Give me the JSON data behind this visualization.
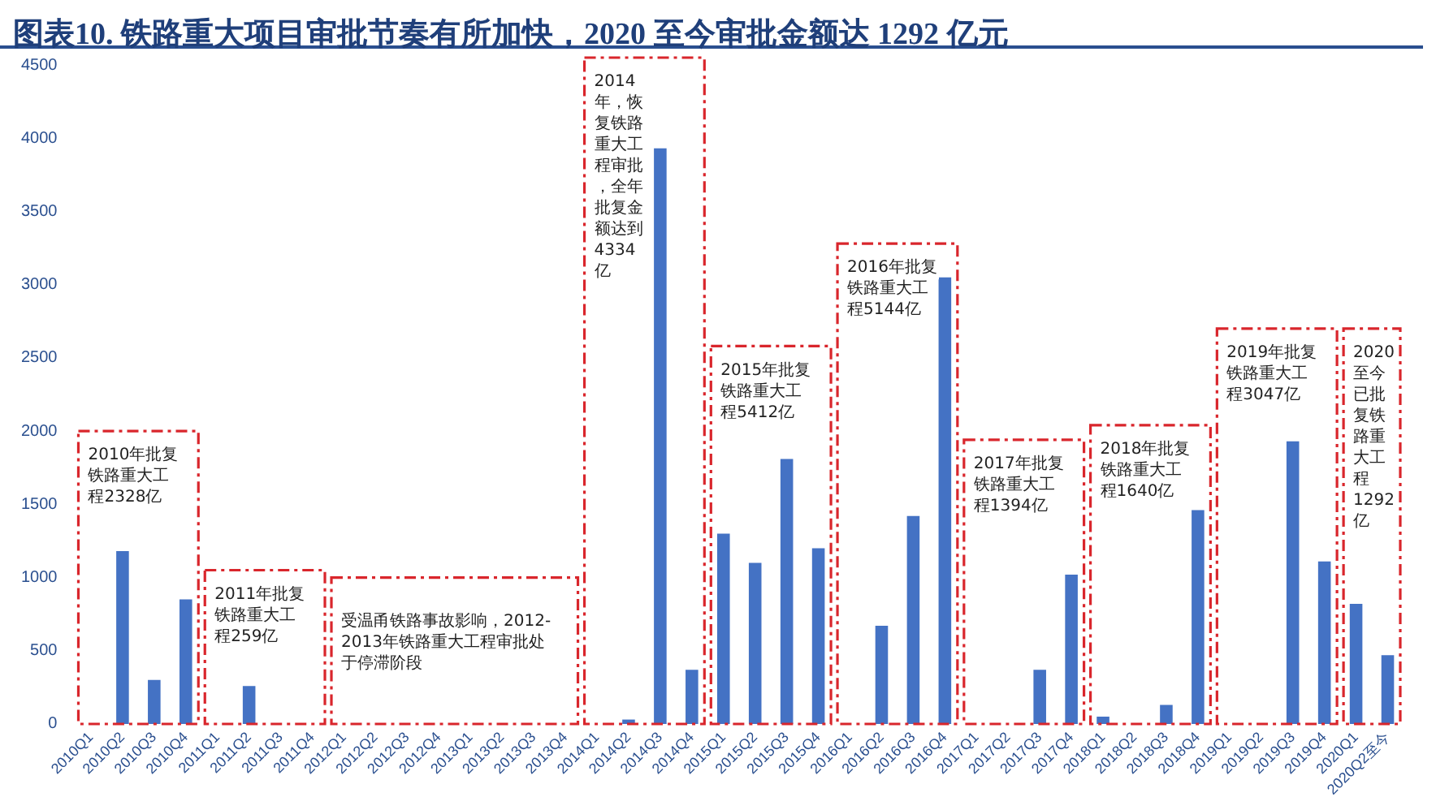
{
  "chart_data": {
    "type": "bar",
    "title": "图表10.  铁路重大项目审批节奏有所加快，2020 至今审批金额达 1292 亿元",
    "categories": [
      "2010Q1",
      "2010Q2",
      "2010Q3",
      "2010Q4",
      "2011Q1",
      "2011Q2",
      "2011Q3",
      "2011Q4",
      "2012Q1",
      "2012Q2",
      "2012Q3",
      "2012Q4",
      "2013Q1",
      "2013Q2",
      "2013Q3",
      "2013Q4",
      "2014Q1",
      "2014Q2",
      "2014Q3",
      "2014Q4",
      "2015Q1",
      "2015Q2",
      "2015Q3",
      "2015Q4",
      "2016Q1",
      "2016Q2",
      "2016Q3",
      "2016Q4",
      "2017Q1",
      "2017Q2",
      "2017Q3",
      "2017Q4",
      "2018Q1",
      "2018Q2",
      "2018Q3",
      "2018Q4",
      "2019Q1",
      "2019Q2",
      "2019Q3",
      "2019Q4",
      "2020Q1",
      "2020Q2至今"
    ],
    "values": [
      0,
      1180,
      300,
      850,
      0,
      259,
      0,
      0,
      0,
      0,
      0,
      0,
      0,
      0,
      0,
      0,
      0,
      30,
      3930,
      370,
      1300,
      1100,
      1810,
      1200,
      0,
      670,
      1420,
      3050,
      0,
      0,
      370,
      1020,
      50,
      0,
      130,
      1460,
      0,
      0,
      1930,
      1110,
      820,
      470
    ],
    "color": "#4472c4",
    "ylim": [
      0,
      4500
    ],
    "yticks": [
      0,
      500,
      1000,
      1500,
      2000,
      2500,
      3000,
      3500,
      4000,
      4500
    ],
    "grid": false,
    "annotations": [
      "2010年批复铁路重大工程2328亿",
      "2011年批复铁路重大工程259亿",
      "受温甬铁路事故影响，2012-2013年铁路重大工程审批处于停滞阶段",
      "2014年，恢复铁路重大工程审批，全年批复金额达到4334亿",
      "2015年批复铁路重大工程5412亿",
      "2016年批复铁路重大工程5144亿",
      "2017年批复铁路重大工程1394亿",
      "2018年批复铁路重大工程1640亿",
      "2019年批复铁路重大工程3047亿",
      "2020至今已批复铁路重大工程1292亿"
    ]
  }
}
